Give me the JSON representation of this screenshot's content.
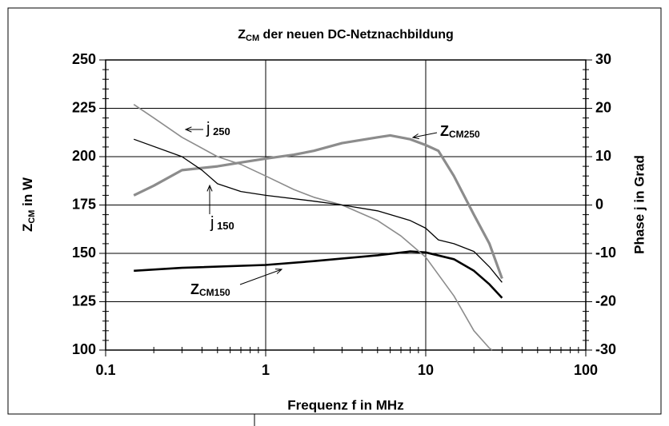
{
  "chart_data": {
    "type": "line",
    "title": "ZCM der neuen DC-Netznachbildung",
    "xlabel": "Frequenz f in MHz",
    "ylabel": "ZCM in W",
    "y2label": "Phase j in Grad",
    "xscale": "log",
    "xlim": [
      0.1,
      100
    ],
    "xticks": [
      0.1,
      1,
      10,
      100
    ],
    "ylim": [
      100,
      250
    ],
    "yticks": [
      100,
      125,
      150,
      175,
      200,
      225,
      250
    ],
    "y2lim": [
      -30,
      30
    ],
    "y2ticks": [
      -30,
      -20,
      -10,
      0,
      10,
      20,
      30
    ],
    "grid": true,
    "series": [
      {
        "name": "ZCM250",
        "color": "#8c8c8c",
        "width": 3.2,
        "axis": "y",
        "x": [
          0.15,
          0.2,
          0.3,
          0.5,
          0.7,
          1,
          1.5,
          2,
          3,
          5,
          6,
          8,
          10,
          12,
          15,
          20,
          25,
          30
        ],
        "values": [
          180,
          185,
          193,
          195,
          197,
          199,
          201,
          203,
          207,
          210,
          211,
          209,
          206,
          203,
          190,
          170,
          155,
          137
        ]
      },
      {
        "name": "ZCM150",
        "color": "#000000",
        "width": 2.6,
        "axis": "y",
        "x": [
          0.15,
          0.3,
          1,
          2,
          5,
          8,
          10,
          15,
          20,
          25,
          30
        ],
        "values": [
          141,
          142.5,
          144,
          146,
          149,
          151,
          150.5,
          147,
          141,
          134,
          127
        ]
      },
      {
        "name": "j 250",
        "color": "#8c8c8c",
        "width": 1.6,
        "axis": "y2",
        "x": [
          0.15,
          0.2,
          0.3,
          0.5,
          0.7,
          1,
          1.5,
          2,
          3,
          5,
          7,
          10,
          15,
          20,
          25,
          26
        ],
        "values": [
          20.8,
          18,
          14,
          10,
          8.4,
          6,
          3.2,
          1.6,
          0,
          -3.2,
          -6.4,
          -10.8,
          -18.8,
          -26,
          -29.6,
          -30
        ]
      },
      {
        "name": "j 150",
        "color": "#000000",
        "width": 1.3,
        "axis": "y2",
        "x": [
          0.15,
          0.3,
          0.4,
          0.5,
          0.7,
          1,
          2,
          3,
          5,
          8,
          10,
          12,
          15,
          20,
          25,
          30
        ],
        "values": [
          13.6,
          10,
          7.2,
          4.4,
          2.8,
          2,
          0.8,
          0,
          -1.2,
          -3.2,
          -4.8,
          -7.2,
          -8,
          -9.6,
          -12.8,
          -16
        ]
      }
    ]
  }
}
